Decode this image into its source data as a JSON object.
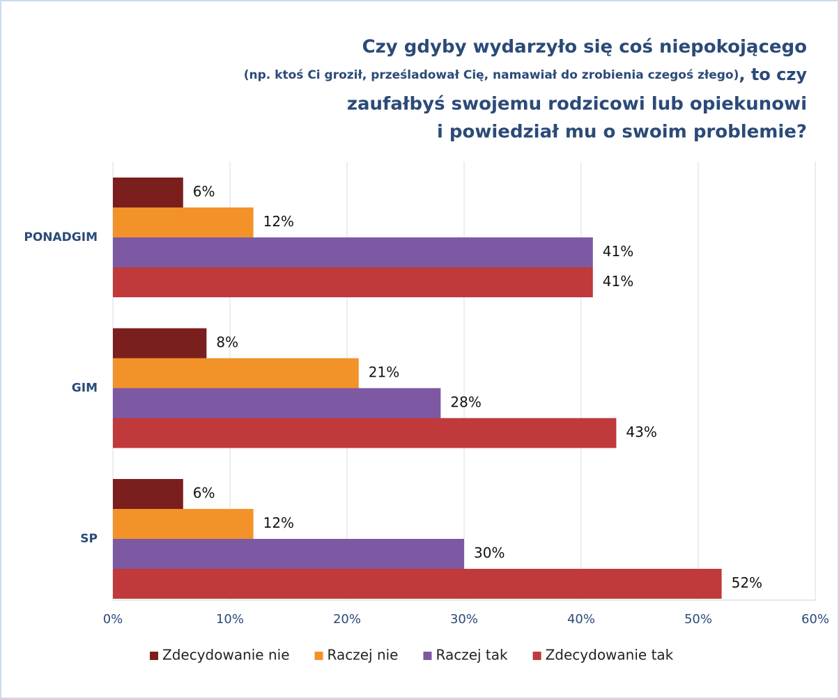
{
  "chart_data": {
    "type": "bar",
    "orientation": "horizontal",
    "title": [
      "Czy gdyby wydarzyło się coś niepokojącego",
      "(np. ktoś Ci groził, prześladował Cię, namawiał do zrobienia czegoś złego)",
      ", to czy",
      "zaufałbyś swojemu rodzicowi lub opiekunowi",
      "i powiedział mu o swoim problemie?"
    ],
    "categories": [
      "PONADGIM",
      "GIM",
      "SP"
    ],
    "series": [
      {
        "name": "Zdecydowanie nie",
        "color": "#7b1e1e",
        "values": [
          6,
          8,
          6
        ],
        "value_labels": [
          "6%",
          "8%",
          "6%"
        ]
      },
      {
        "name": "Raczej nie",
        "color": "#f39228",
        "values": [
          12,
          21,
          12
        ],
        "value_labels": [
          "12%",
          "21%",
          "12%"
        ]
      },
      {
        "name": "Raczej tak",
        "color": "#7d58a3",
        "values": [
          41,
          28,
          30
        ],
        "value_labels": [
          "41%",
          "28%",
          "30%"
        ]
      },
      {
        "name": "Zdecydowanie tak",
        "color": "#c0393b",
        "values": [
          41,
          43,
          52
        ],
        "value_labels": [
          "41%",
          "43%",
          "52%"
        ]
      }
    ],
    "xlim": [
      0,
      60
    ],
    "xticks": [
      {
        "value": 0,
        "label": "0%"
      },
      {
        "value": 10,
        "label": "10%"
      },
      {
        "value": 20,
        "label": "20%"
      },
      {
        "value": 30,
        "label": "30%"
      },
      {
        "value": 40,
        "label": "40%"
      },
      {
        "value": 50,
        "label": "50%"
      },
      {
        "value": 60,
        "label": "60%"
      }
    ],
    "grid": true,
    "legend": "bottom"
  }
}
